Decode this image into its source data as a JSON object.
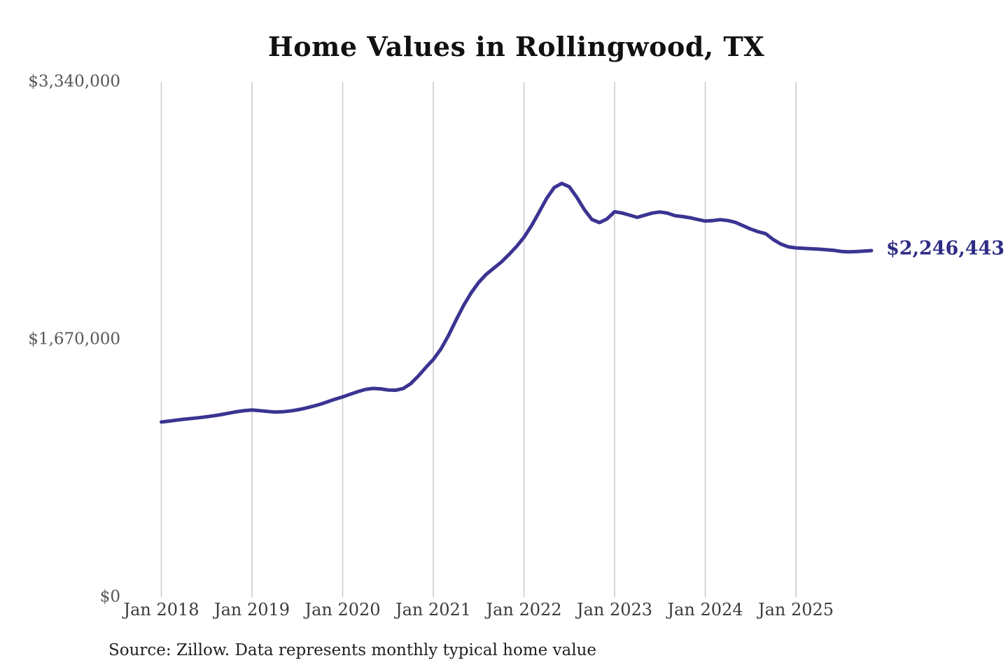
{
  "page": {
    "background": "#ffffff"
  },
  "header": {
    "title": "Home Values in Rollingwood, TX"
  },
  "chart_data": {
    "type": "line",
    "title": "Home Values in Rollingwood, TX",
    "xlabel": "",
    "ylabel": "",
    "ylim": [
      0,
      3340000
    ],
    "grid": "vertical-gridlines-only",
    "legend": "none",
    "line_color": "#3b3492",
    "gridline_color": "#c9c9c9",
    "end_label": "$2,246,443",
    "end_value": 2246443,
    "y_tick_labels": [
      "$3,340,000",
      "$1,670,000",
      "$0"
    ],
    "y_tick_values": [
      3340000,
      1670000,
      0
    ],
    "x_tick_labels": [
      "Jan 2018",
      "Jan 2019",
      "Jan 2020",
      "Jan 2021",
      "Jan 2022",
      "Jan 2023",
      "Jan 2024",
      "Jan 2025"
    ],
    "x": [
      "2018-01",
      "2018-02",
      "2018-03",
      "2018-04",
      "2018-05",
      "2018-06",
      "2018-07",
      "2018-08",
      "2018-09",
      "2018-10",
      "2018-11",
      "2018-12",
      "2019-01",
      "2019-02",
      "2019-03",
      "2019-04",
      "2019-05",
      "2019-06",
      "2019-07",
      "2019-08",
      "2019-09",
      "2019-10",
      "2019-11",
      "2019-12",
      "2020-01",
      "2020-02",
      "2020-03",
      "2020-04",
      "2020-05",
      "2020-06",
      "2020-07",
      "2020-08",
      "2020-09",
      "2020-10",
      "2020-11",
      "2020-12",
      "2021-01",
      "2021-02",
      "2021-03",
      "2021-04",
      "2021-05",
      "2021-06",
      "2021-07",
      "2021-08",
      "2021-09",
      "2021-10",
      "2021-11",
      "2021-12",
      "2022-01",
      "2022-02",
      "2022-03",
      "2022-04",
      "2022-05",
      "2022-06",
      "2022-07",
      "2022-08",
      "2022-09",
      "2022-10",
      "2022-11",
      "2022-12",
      "2023-01",
      "2023-02",
      "2023-03",
      "2023-04",
      "2023-05",
      "2023-06",
      "2023-07",
      "2023-08",
      "2023-09",
      "2023-10",
      "2023-11",
      "2023-12",
      "2024-01",
      "2024-02",
      "2024-03",
      "2024-04",
      "2024-05",
      "2024-06",
      "2024-07",
      "2024-08",
      "2024-09",
      "2024-10",
      "2024-11",
      "2024-12",
      "2025-01",
      "2025-02",
      "2025-03",
      "2025-04",
      "2025-05",
      "2025-06",
      "2025-07",
      "2025-08",
      "2025-09",
      "2025-10",
      "2025-11"
    ],
    "series": [
      {
        "name": "Monthly typical home value",
        "values": [
          1135000,
          1141000,
          1147000,
          1153000,
          1158000,
          1163000,
          1169000,
          1176000,
          1184000,
          1193000,
          1202000,
          1209000,
          1213000,
          1209000,
          1204000,
          1200000,
          1201000,
          1206000,
          1214000,
          1224000,
          1236000,
          1250000,
          1266000,
          1283000,
          1298000,
          1315000,
          1332000,
          1346000,
          1353000,
          1350000,
          1343000,
          1341000,
          1352000,
          1383000,
          1432000,
          1488000,
          1540000,
          1608000,
          1695000,
          1795000,
          1890000,
          1972000,
          2040000,
          2092000,
          2132000,
          2172000,
          2220000,
          2272000,
          2332000,
          2408000,
          2495000,
          2585000,
          2655000,
          2682000,
          2660000,
          2592000,
          2512000,
          2448000,
          2428000,
          2452000,
          2498000,
          2490000,
          2476000,
          2462000,
          2476000,
          2490000,
          2497000,
          2489000,
          2473000,
          2467000,
          2459000,
          2448000,
          2438000,
          2441000,
          2447000,
          2441000,
          2429000,
          2408000,
          2386000,
          2369000,
          2356000,
          2318000,
          2289000,
          2271000,
          2264000,
          2261000,
          2258000,
          2256000,
          2252000,
          2248000,
          2241000,
          2238000,
          2240000,
          2243000,
          2246443
        ]
      }
    ]
  },
  "footer": {
    "source_note": "Source: Zillow. Data represents monthly typical home value"
  }
}
